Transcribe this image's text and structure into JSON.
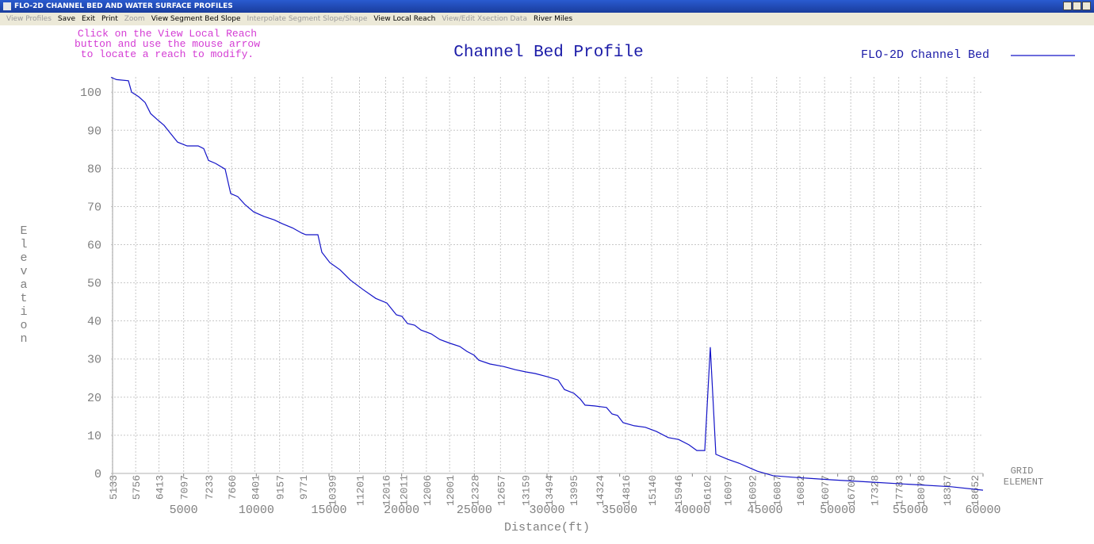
{
  "window_title": "FLO-2D CHANNEL BED AND WATER SURFACE PROFILES",
  "menu": [
    {
      "label": "View Profiles",
      "enabled": false
    },
    {
      "label": "Save",
      "enabled": true
    },
    {
      "label": "Exit",
      "enabled": true
    },
    {
      "label": "Print",
      "enabled": true
    },
    {
      "label": "Zoom",
      "enabled": false
    },
    {
      "label": "View Segment Bed Slope",
      "enabled": true
    },
    {
      "label": "Interpolate Segment Slope/Shape",
      "enabled": false
    },
    {
      "label": "View Local Reach",
      "enabled": true
    },
    {
      "label": "View/Edit Xsection Data",
      "enabled": false
    },
    {
      "label": "River Miles",
      "enabled": true
    }
  ],
  "instructions": [
    "Click on the View Local Reach",
    "button and use the mouse arrow",
    "to locate a reach to modify."
  ],
  "chart_data": {
    "type": "line",
    "title": "Channel Bed Profile",
    "x_label": "Distance(ft)",
    "y_label": "Elevation",
    "grid": true,
    "legend": "top-right",
    "xlim": [
      0,
      60000
    ],
    "ylim": [
      -5,
      104
    ],
    "xticks": [
      5000,
      10000,
      15000,
      20000,
      25000,
      30000,
      35000,
      40000,
      45000,
      50000,
      55000,
      60000
    ],
    "yticks": [
      0,
      10,
      20,
      30,
      40,
      50,
      60,
      70,
      80,
      90,
      100
    ],
    "x": [
      0,
      382,
      1200,
      1418,
      1909,
      2345,
      2727,
      3164,
      3655,
      4091,
      4582,
      5236,
      6000,
      6382,
      6709,
      7200,
      7855,
      8236,
      8727,
      9218,
      9818,
      10527,
      11236,
      11782,
      12491,
      13145,
      13418,
      14236,
      14509,
      15054,
      15764,
      16473,
      17345,
      18218,
      18982,
      19636,
      20018,
      20400,
      20891,
      21327,
      22036,
      22636,
      23345,
      24000,
      24491,
      24982,
      25309,
      26073,
      26945,
      27818,
      28582,
      29182,
      30000,
      30764,
      31200,
      31855,
      32291,
      32618,
      33273,
      34091,
      34473,
      34855,
      35236,
      36000,
      36764,
      37527,
      38345,
      39055,
      39764,
      40309,
      40855,
      41236,
      41618,
      42436,
      43200,
      44455,
      45545,
      46909,
      49636,
      52364,
      55091,
      57818,
      60000
    ],
    "series": [
      {
        "name": "FLO-2D Channel Bed",
        "color": "#1414c8",
        "values": [
          103.9,
          103.3,
          103,
          100,
          98.8,
          97.3,
          94.4,
          92.9,
          91.3,
          89.2,
          86.9,
          85.9,
          85.9,
          85.2,
          82.1,
          81.3,
          79.8,
          73.4,
          72.6,
          70.5,
          68.6,
          67.4,
          66.5,
          65.5,
          64.4,
          63.0,
          62.6,
          62.6,
          58.0,
          55.3,
          53.4,
          50.7,
          48.2,
          45.9,
          44.7,
          41.6,
          41.2,
          39.3,
          38.9,
          37.6,
          36.6,
          35.1,
          34.1,
          33.3,
          32.0,
          31.0,
          29.7,
          28.7,
          28.1,
          27.2,
          26.6,
          26.2,
          25.4,
          24.5,
          22.0,
          21.0,
          19.5,
          17.9,
          17.7,
          17.3,
          15.6,
          15.2,
          13.3,
          12.5,
          12.1,
          11.0,
          9.4,
          8.9,
          7.5,
          6.0,
          6.0,
          33.1,
          5.0,
          3.7,
          2.7,
          0.6,
          -0.6,
          -1.0,
          -1.7,
          -2.3,
          -2.9,
          -3.5,
          -4.4
        ]
      }
    ],
    "grid_element_title": [
      "GRID",
      "ELEMENT"
    ],
    "grid_elements": {
      "labels": [
        "5133",
        "5756",
        "6413",
        "7097",
        "7233",
        "7660",
        "8401",
        "9157",
        "9771",
        "10399",
        "11201",
        "12016",
        "12011",
        "12006",
        "12001",
        "12328",
        "12657",
        "13159",
        "13494",
        "13995",
        "14324",
        "14816",
        "15140",
        "15946",
        "16102",
        "16097",
        "16092",
        "16087",
        "16082",
        "16077",
        "16709",
        "17328",
        "17783",
        "18078",
        "18367",
        "18652"
      ],
      "x": [
        100,
        1700,
        3300,
        5000,
        6700,
        8300,
        9900,
        11600,
        13200,
        15200,
        17100,
        18900,
        20100,
        21700,
        23300,
        25000,
        26800,
        28500,
        30100,
        31800,
        33600,
        35400,
        37200,
        39000,
        41000,
        42400,
        44100,
        45800,
        47400,
        49100,
        50900,
        52500,
        54200,
        55700,
        57500,
        59400
      ]
    }
  }
}
